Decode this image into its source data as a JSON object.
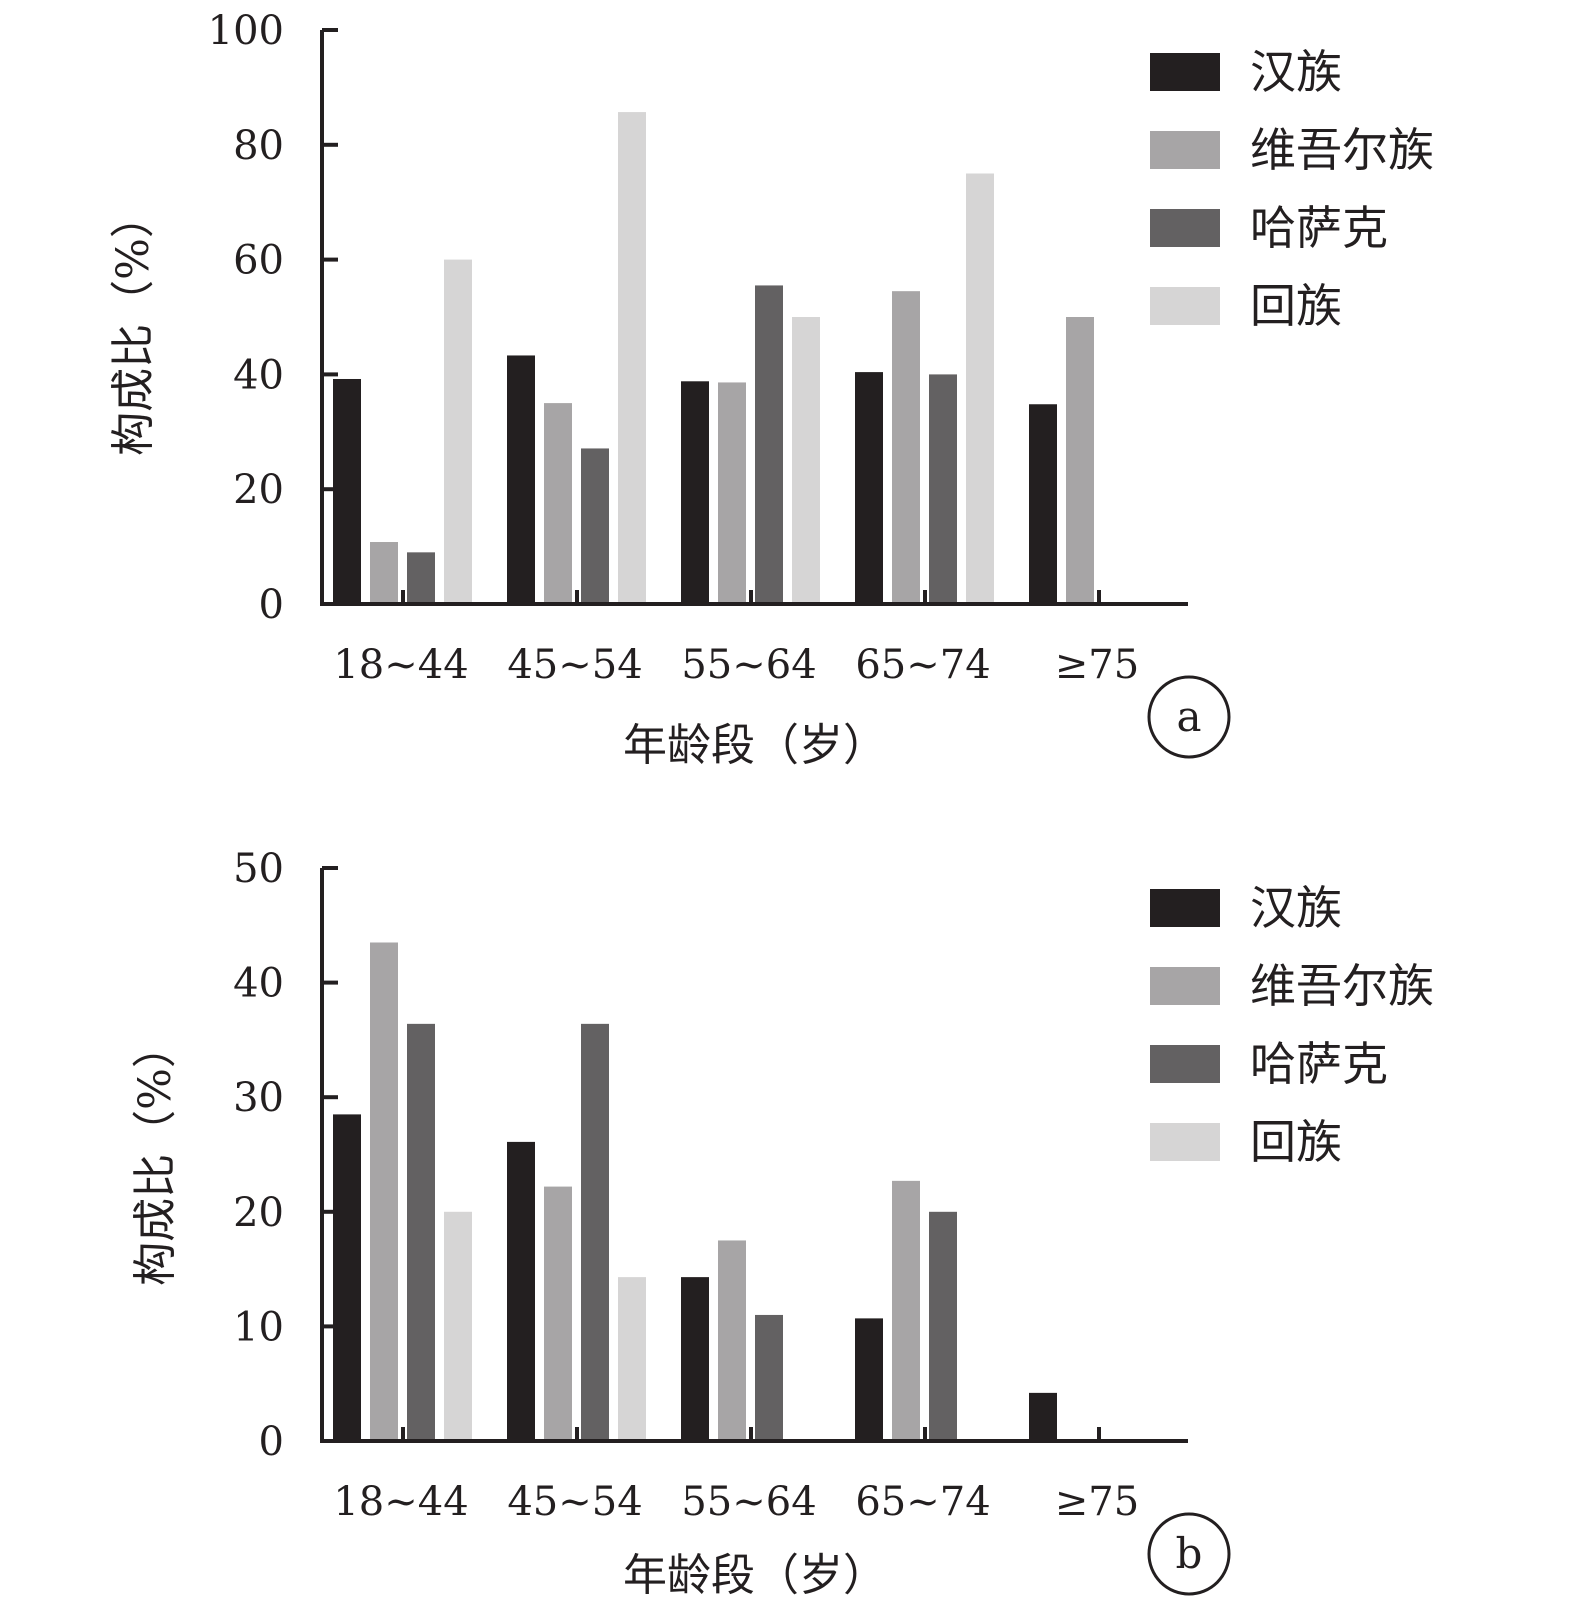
{
  "chart_data": [
    {
      "panel": "a",
      "type": "bar",
      "categories": [
        "18~44",
        "45~54",
        "55~64",
        "65~74",
        "≥75"
      ],
      "series": [
        {
          "name": "汉族",
          "values": [
            39.2,
            43.3,
            38.8,
            40.4,
            34.8
          ],
          "color": "#231f20"
        },
        {
          "name": "维吾尔族",
          "values": [
            10.8,
            35.0,
            38.6,
            54.5,
            50.0
          ],
          "color": "#a7a5a6"
        },
        {
          "name": "哈萨克",
          "values": [
            9.0,
            27.1,
            55.5,
            40.0,
            0
          ],
          "color": "#636162"
        },
        {
          "name": "回族",
          "values": [
            60.0,
            85.7,
            50.0,
            75.0,
            0
          ],
          "color": "#d6d5d5"
        }
      ],
      "xlabel": "年龄段（岁）",
      "ylabel": "构成比（%）",
      "ylim": [
        0,
        100
      ],
      "yticks": [
        "0",
        "20",
        "40",
        "60",
        "80",
        "100"
      ],
      "legend": "top-right",
      "grid": false
    },
    {
      "panel": "b",
      "type": "bar",
      "categories": [
        "18~44",
        "45~54",
        "55~64",
        "65~74",
        "≥75"
      ],
      "series": [
        {
          "name": "汉族",
          "values": [
            28.5,
            26.1,
            14.3,
            10.7,
            4.2
          ],
          "color": "#231f20"
        },
        {
          "name": "维吾尔族",
          "values": [
            43.5,
            22.2,
            17.5,
            22.7,
            0
          ],
          "color": "#a7a5a6"
        },
        {
          "name": "哈萨克",
          "values": [
            36.4,
            36.4,
            11.0,
            20.0,
            0
          ],
          "color": "#636162"
        },
        {
          "name": "回族",
          "values": [
            20.0,
            14.3,
            0,
            0,
            0
          ],
          "color": "#d6d5d5"
        }
      ],
      "xlabel": "年龄段（岁）",
      "ylabel": "构成比（%）",
      "ylim": [
        0,
        50
      ],
      "yticks": [
        "0",
        "10",
        "20",
        "30",
        "40",
        "50"
      ],
      "legend": "top-right",
      "grid": false
    }
  ]
}
